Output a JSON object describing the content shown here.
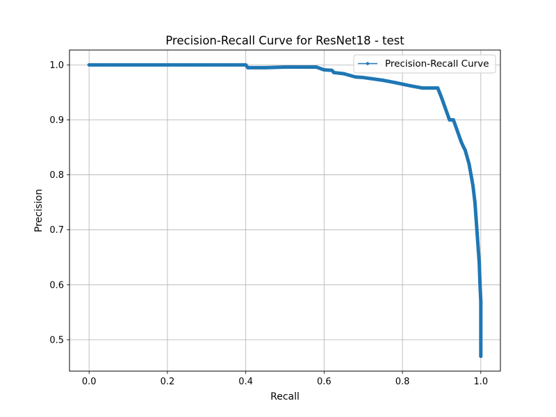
{
  "chart_data": {
    "type": "line",
    "title": "Precision-Recall Curve for ResNet18 - test",
    "xlabel": "Recall",
    "ylabel": "Precision",
    "xlim": [
      -0.05,
      1.05
    ],
    "ylim": [
      0.443,
      1.027
    ],
    "xticks": [
      0.0,
      0.2,
      0.4,
      0.6,
      0.8,
      1.0
    ],
    "xtick_labels": [
      "0.0",
      "0.2",
      "0.4",
      "0.6",
      "0.8",
      "1.0"
    ],
    "yticks": [
      0.5,
      0.6,
      0.7,
      0.8,
      0.9,
      1.0
    ],
    "ytick_labels": [
      "0.5",
      "0.6",
      "0.7",
      "0.8",
      "0.9",
      "1.0"
    ],
    "grid": true,
    "legend": {
      "placement": "top-right",
      "entries": [
        "Precision-Recall Curve"
      ]
    },
    "colors": {
      "series": "#1f77b4",
      "grid": "#b0b0b0",
      "axes": "#000000"
    },
    "series": [
      {
        "name": "Precision-Recall Curve",
        "marker": "point",
        "x": [
          0.0,
          0.036,
          0.064,
          0.085,
          0.1,
          0.13,
          0.16,
          0.2,
          0.25,
          0.3,
          0.35,
          0.4,
          0.405,
          0.41,
          0.45,
          0.5,
          0.55,
          0.58,
          0.6,
          0.62,
          0.625,
          0.65,
          0.68,
          0.7,
          0.72,
          0.75,
          0.78,
          0.8,
          0.82,
          0.85,
          0.87,
          0.89,
          0.9,
          0.91,
          0.92,
          0.93,
          0.94,
          0.95,
          0.955,
          0.96,
          0.97,
          0.975,
          0.98,
          0.985,
          0.99,
          0.993,
          0.996,
          0.998,
          1.0,
          1.0,
          1.0,
          1.0,
          1.0
        ],
        "y": [
          1.0,
          1.0,
          1.0,
          1.0,
          1.0,
          1.0,
          1.0,
          1.0,
          1.0,
          1.0,
          1.0,
          1.0,
          0.995,
          0.995,
          0.995,
          0.996,
          0.996,
          0.996,
          0.991,
          0.99,
          0.986,
          0.984,
          0.978,
          0.977,
          0.975,
          0.972,
          0.968,
          0.965,
          0.962,
          0.958,
          0.958,
          0.958,
          0.94,
          0.92,
          0.9,
          0.9,
          0.88,
          0.86,
          0.852,
          0.845,
          0.82,
          0.8,
          0.78,
          0.75,
          0.7,
          0.67,
          0.64,
          0.6,
          0.57,
          0.55,
          0.52,
          0.49,
          0.47
        ]
      }
    ]
  }
}
